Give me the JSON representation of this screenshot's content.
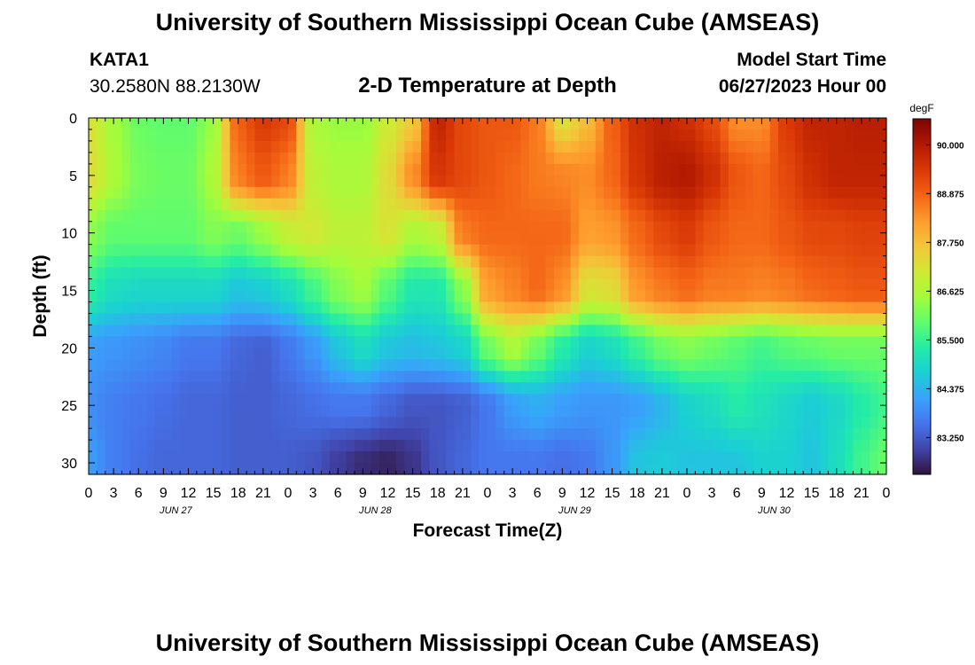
{
  "page_title": "University of Southern Mississippi Ocean Cube (AMSEAS)",
  "station": {
    "id": "KATA1",
    "coords": "30.2580N  88.2130W"
  },
  "model_start": {
    "label": "Model Start Time",
    "value": "06/27/2023 Hour 00"
  },
  "footer_title": "University of Southern Mississippi Ocean Cube (AMSEAS)",
  "chart_data": {
    "type": "heatmap",
    "title": "2-D Temperature at Depth",
    "xlabel": "Forecast Time(Z)",
    "ylabel": "Depth (ft)",
    "x_tick_labels": [
      "0",
      "3",
      "6",
      "9",
      "12",
      "15",
      "18",
      "21",
      "0",
      "3",
      "6",
      "9",
      "12",
      "15",
      "18",
      "21",
      "0",
      "3",
      "6",
      "9",
      "12",
      "15",
      "18",
      "21",
      "0",
      "3",
      "6",
      "9",
      "12",
      "15",
      "18",
      "21",
      "0"
    ],
    "x_range_hours": [
      0,
      96
    ],
    "date_labels": [
      {
        "text": "JUN 27",
        "hour": 10.5
      },
      {
        "text": "JUN 28",
        "hour": 34.5
      },
      {
        "text": "JUN 29",
        "hour": 58.5
      },
      {
        "text": "JUN 30",
        "hour": 82.5
      }
    ],
    "y_ticks": [
      0,
      5,
      10,
      15,
      20,
      25,
      30
    ],
    "y_range_ft": [
      0,
      31
    ],
    "colorbar": {
      "unit": "degF",
      "range": [
        82.4,
        90.6
      ],
      "tick_labels": [
        "90.000",
        "88.875",
        "87.750",
        "86.625",
        "85.500",
        "84.375",
        "83.250"
      ],
      "tick_values": [
        90.0,
        88.875,
        87.75,
        86.625,
        85.5,
        84.375,
        83.25
      ],
      "colormap": [
        "#30123b",
        "#4145ab",
        "#4675ed",
        "#39a2fc",
        "#1bcfd4",
        "#24eca6",
        "#61fc6c",
        "#a4fc3b",
        "#d1e834",
        "#f3c63a",
        "#fe9b2d",
        "#f36315",
        "#d93806",
        "#b11901",
        "#7a0403"
      ]
    },
    "depths_ft": [
      0,
      5,
      10,
      15,
      20,
      25,
      30
    ],
    "hours": [
      0,
      3,
      6,
      9,
      12,
      15,
      18,
      21,
      24,
      27,
      30,
      33,
      36,
      39,
      42,
      45,
      48,
      51,
      54,
      57,
      60,
      63,
      66,
      69,
      72,
      75,
      78,
      81,
      84,
      87,
      90,
      93,
      96
    ],
    "temperature_grid_degF": [
      [
        87.2,
        86.5,
        86.0,
        85.9,
        85.9,
        86.4,
        88.9,
        89.4,
        89.2,
        86.6,
        86.4,
        86.4,
        87.0,
        87.6,
        89.8,
        89.2,
        89.0,
        89.0,
        88.6,
        87.2,
        87.8,
        88.9,
        89.6,
        89.8,
        89.6,
        89.2,
        88.4,
        88.4,
        89.4,
        89.8,
        89.8,
        89.9,
        89.9
      ],
      [
        87.3,
        86.6,
        86.1,
        86.0,
        86.0,
        86.6,
        88.6,
        89.0,
        88.6,
        86.8,
        86.6,
        86.6,
        87.3,
        88.4,
        89.5,
        89.2,
        89.0,
        88.8,
        88.6,
        88.5,
        88.4,
        88.8,
        89.5,
        89.9,
        90.0,
        89.6,
        89.0,
        88.8,
        89.2,
        89.6,
        89.8,
        89.8,
        89.8
      ],
      [
        86.3,
        85.9,
        85.9,
        85.9,
        85.9,
        86.2,
        86.0,
        86.4,
        86.9,
        87.1,
        86.8,
        86.8,
        87.2,
        86.6,
        86.8,
        88.6,
        88.8,
        88.8,
        88.8,
        88.8,
        88.2,
        88.3,
        88.8,
        89.2,
        89.4,
        89.0,
        88.8,
        88.8,
        89.0,
        89.2,
        89.2,
        89.3,
        89.3
      ],
      [
        85.4,
        85.0,
        84.9,
        84.9,
        84.9,
        84.9,
        84.6,
        84.7,
        85.0,
        85.6,
        86.2,
        86.5,
        85.8,
        85.2,
        85.2,
        86.2,
        88.2,
        88.5,
        88.8,
        88.4,
        87.2,
        87.3,
        88.3,
        88.6,
        88.8,
        88.6,
        88.6,
        88.5,
        88.6,
        88.8,
        88.9,
        89.0,
        89.0
      ],
      [
        84.1,
        84.0,
        83.9,
        83.8,
        83.6,
        83.6,
        83.4,
        83.3,
        83.6,
        84.0,
        84.6,
        85.0,
        84.6,
        84.5,
        84.6,
        84.8,
        86.0,
        86.6,
        86.0,
        85.3,
        84.8,
        85.0,
        85.5,
        86.0,
        86.2,
        86.0,
        85.8,
        85.6,
        85.8,
        85.9,
        86.0,
        86.0,
        86.0
      ],
      [
        83.9,
        83.7,
        83.6,
        83.5,
        83.4,
        83.4,
        83.3,
        83.3,
        83.4,
        83.5,
        83.6,
        83.6,
        83.4,
        83.2,
        83.2,
        83.3,
        83.6,
        84.1,
        84.3,
        84.1,
        84.0,
        84.0,
        84.1,
        84.4,
        84.8,
        85.0,
        85.3,
        85.1,
        84.9,
        84.7,
        84.9,
        85.3,
        85.6
      ],
      [
        84.1,
        83.7,
        83.5,
        83.4,
        83.4,
        83.4,
        83.3,
        83.3,
        83.3,
        83.2,
        82.9,
        82.7,
        82.6,
        82.8,
        83.2,
        83.4,
        83.6,
        83.6,
        83.6,
        83.5,
        83.6,
        84.0,
        84.6,
        84.7,
        84.6,
        84.6,
        84.6,
        84.8,
        84.8,
        84.6,
        85.0,
        85.6,
        86.0
      ]
    ]
  }
}
